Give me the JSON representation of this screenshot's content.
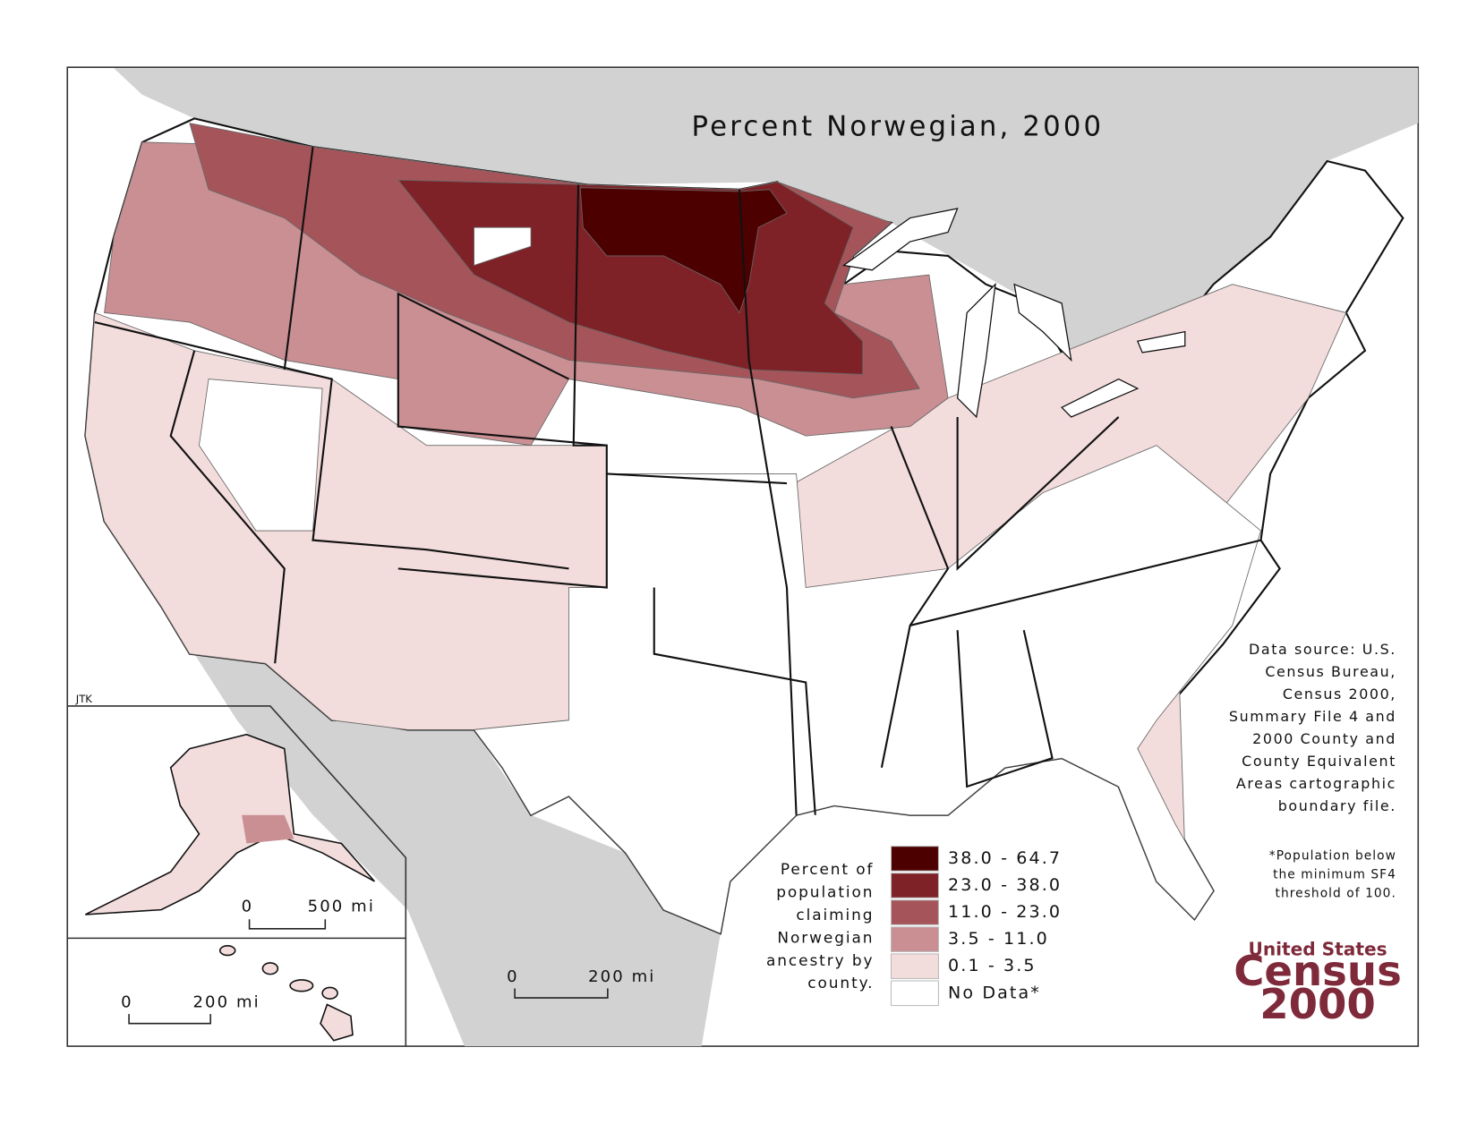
{
  "title": "Percent Norwegian, 2000",
  "credit": "JTK",
  "legend": {
    "title_lines": [
      "Percent of",
      "population",
      "claiming",
      "Norwegian",
      "ancestry by",
      "county."
    ],
    "items": [
      {
        "label": "38.0 - 64.7",
        "color": "#4d0000"
      },
      {
        "label": "23.0 - 38.0",
        "color": "#7e2227"
      },
      {
        "label": "11.0 - 23.0",
        "color": "#a5555a"
      },
      {
        "label": "3.5 - 11.0",
        "color": "#c98f93"
      },
      {
        "label": "0.1 - 3.5",
        "color": "#f3dcdc"
      },
      {
        "label": "No Data*",
        "color": "#ffffff"
      }
    ]
  },
  "source_lines": [
    "Data source:  U.S.",
    "Census Bureau,",
    "Census 2000,",
    "Summary File 4 and",
    "2000 County and",
    "County Equivalent",
    "Areas cartographic",
    "boundary file."
  ],
  "note_lines": [
    "*Population below",
    "the minimum SF4",
    "threshold of 100."
  ],
  "scale_bars": {
    "alaska": {
      "start": "0",
      "end": "500 mi"
    },
    "hawaii": {
      "start": "0",
      "end": "200 mi"
    },
    "main": {
      "start": "0",
      "end": "200 mi"
    }
  },
  "logo": {
    "top": "United States",
    "middle": "Census",
    "bottom": "2000"
  }
}
